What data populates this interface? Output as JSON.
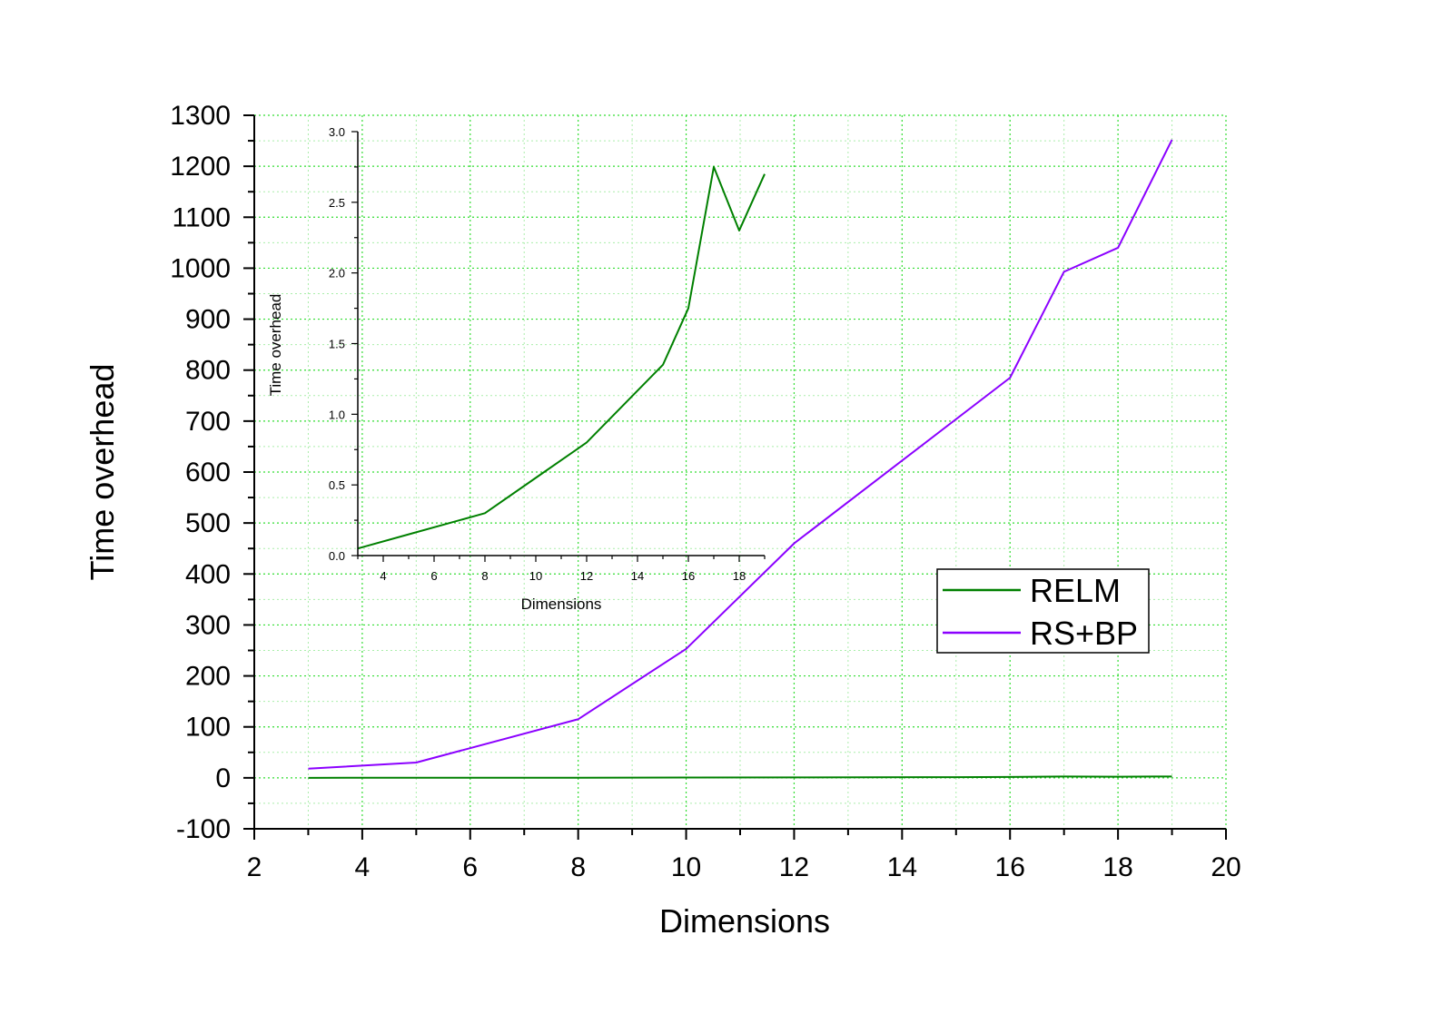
{
  "chart_data": [
    {
      "type": "line",
      "xlabel": "Dimensions",
      "ylabel": "Time overhead",
      "xlim": [
        2,
        20
      ],
      "ylim": [
        -100,
        1300
      ],
      "x_ticks": [
        "2",
        "4",
        "6",
        "8",
        "10",
        "12",
        "14",
        "16",
        "18",
        "20"
      ],
      "y_ticks": [
        "-100",
        "0",
        "100",
        "200",
        "300",
        "400",
        "500",
        "600",
        "700",
        "800",
        "900",
        "1000",
        "1100",
        "1200",
        "1300"
      ],
      "grid": true,
      "legend_position": "center-right",
      "series": [
        {
          "name": "RELM",
          "color": "#008000",
          "x": [
            3,
            5,
            8,
            10,
            12,
            15,
            16,
            17,
            18,
            19
          ],
          "y": [
            0.05,
            0.15,
            0.3,
            0.55,
            0.8,
            1.35,
            1.75,
            2.75,
            2.3,
            2.7
          ]
        },
        {
          "name": "RS+BP",
          "color": "#8B00FF",
          "x": [
            3,
            5,
            8,
            10,
            12,
            16,
            17,
            18,
            19
          ],
          "y": [
            18,
            30,
            115,
            253,
            460,
            785,
            993,
            1040,
            1252
          ]
        }
      ]
    },
    {
      "type": "line",
      "inset": true,
      "xlabel": "Dimensions",
      "ylabel": "Time overhead",
      "xlim": [
        3,
        19
      ],
      "ylim": [
        0,
        3.0
      ],
      "x_ticks": [
        "4",
        "6",
        "8",
        "10",
        "12",
        "14",
        "16",
        "18"
      ],
      "y_ticks": [
        "0.0",
        "0.5",
        "1.0",
        "1.5",
        "2.0",
        "2.5",
        "3.0"
      ],
      "series": [
        {
          "color": "#008000",
          "x": [
            3,
            5,
            8,
            10,
            12,
            15,
            16,
            17,
            18,
            19
          ],
          "y": [
            0.05,
            0.15,
            0.3,
            0.55,
            0.8,
            1.35,
            1.75,
            2.75,
            2.3,
            2.7
          ]
        }
      ]
    }
  ]
}
